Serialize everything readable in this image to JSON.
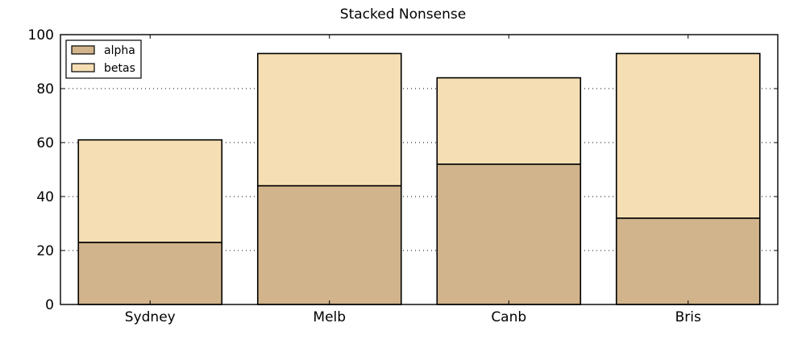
{
  "chart_data": {
    "type": "bar",
    "stacked": true,
    "title": "Stacked Nonsense",
    "xlabel": "",
    "ylabel": "",
    "categories": [
      "Sydney",
      "Melb",
      "Canb",
      "Bris"
    ],
    "series": [
      {
        "name": "alpha",
        "values": [
          23,
          44,
          52,
          32
        ],
        "color": "#d2b48c"
      },
      {
        "name": "betas",
        "values": [
          38,
          49,
          32,
          61
        ],
        "color": "#f5deb3"
      }
    ],
    "ylim": [
      0,
      100
    ],
    "yticks": [
      0,
      20,
      40,
      60,
      80,
      100
    ],
    "grid": {
      "y": true,
      "style": "dotted"
    },
    "legend_position": "top-left"
  }
}
